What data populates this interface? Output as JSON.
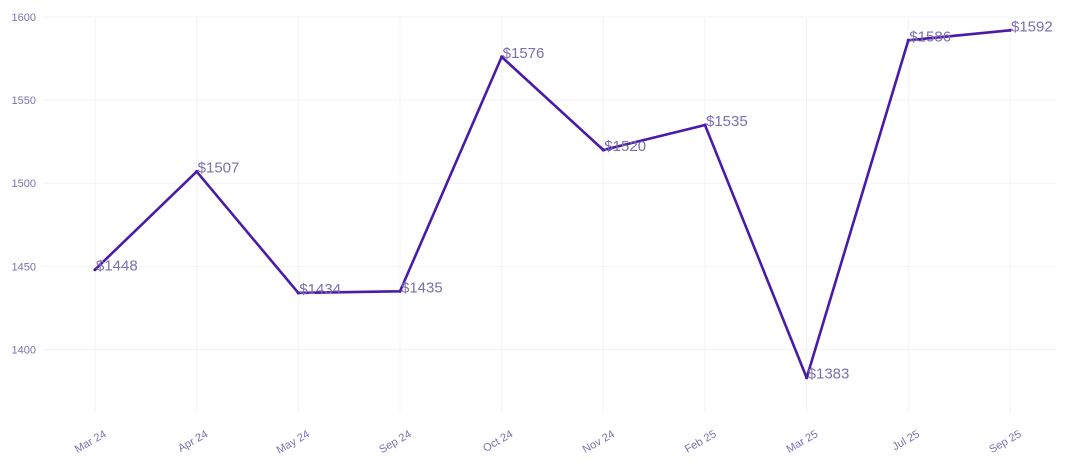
{
  "chart_data": {
    "type": "line",
    "categories": [
      "Mar 24",
      "Apr 24",
      "May 24",
      "Sep 24",
      "Oct 24",
      "Nov 24",
      "Feb 25",
      "Mar 25",
      "Jul 25",
      "Sep 25"
    ],
    "series": [
      {
        "values": [
          1448,
          1507,
          1434,
          1435,
          1576,
          1520,
          1535,
          1383,
          1586,
          1592
        ],
        "data_labels": [
          "$1448",
          "$1507",
          "$1434",
          "$1435",
          "$1576",
          "$1520",
          "$1535",
          "$1383",
          "$1586",
          "$1592"
        ],
        "color": "#4a1aa8"
      }
    ],
    "yticks": [
      1400,
      1450,
      1500,
      1550,
      1600
    ],
    "ylim": [
      1372,
      1600
    ],
    "grid": true,
    "legend": "none",
    "label_color": "#7a6fb0",
    "tick_color": "#7a72b0",
    "grid_color": "#f3f2f8"
  }
}
